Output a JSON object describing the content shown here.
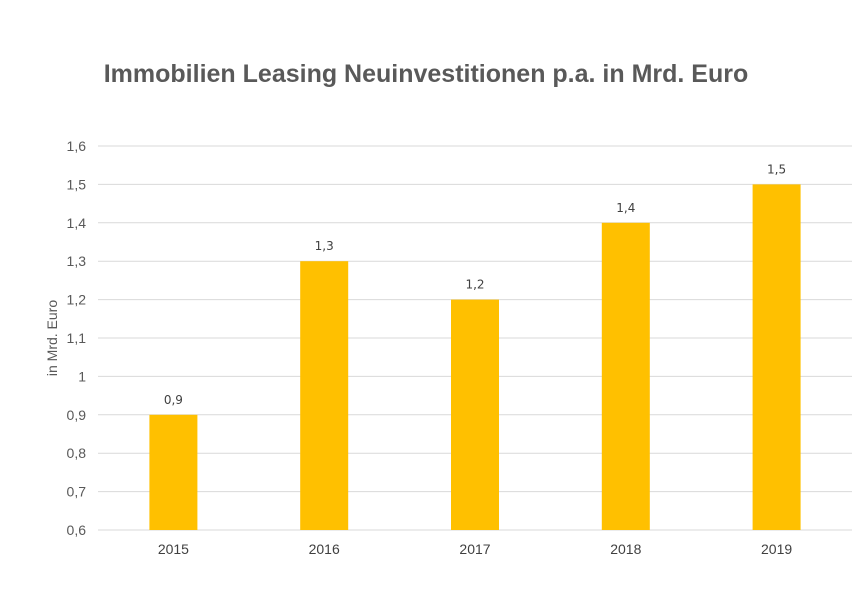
{
  "chart_data": {
    "type": "bar",
    "title": "Immobilien Leasing Neuinvestitionen p.a. in Mrd. Euro",
    "xlabel": "",
    "ylabel": "in Mrd. Euro",
    "categories": [
      "2015",
      "2016",
      "2017",
      "2018",
      "2019"
    ],
    "values": [
      0.9,
      1.3,
      1.2,
      1.4,
      1.5
    ],
    "value_labels": [
      "0,9",
      "1,3",
      "1,2",
      "1,4",
      "1,5"
    ],
    "ylim": [
      0.6,
      1.6
    ],
    "yticks": [
      0.6,
      0.7,
      0.8,
      0.9,
      1.0,
      1.1,
      1.2,
      1.3,
      1.4,
      1.5,
      1.6
    ],
    "ytick_labels": [
      "0,6",
      "0,7",
      "0,8",
      "0,9",
      "1",
      "1,1",
      "1,2",
      "1,3",
      "1,4",
      "1,5",
      "1,6"
    ],
    "grid": true,
    "legend": "none",
    "bar_color": "#FFC000",
    "grid_color": "#D9D9D9"
  }
}
